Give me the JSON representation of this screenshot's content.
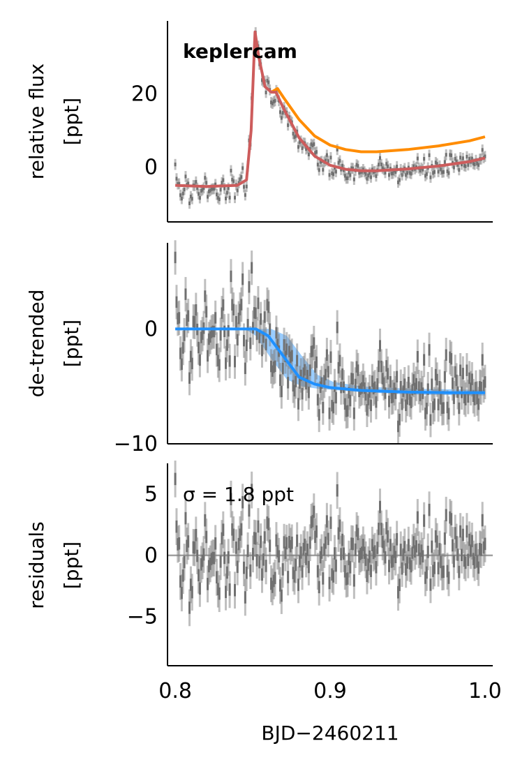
{
  "chart_data": [
    {
      "type": "scatter",
      "panel": "top",
      "title": "",
      "annotation": "keplercam",
      "ylabel_line1": "relative flux",
      "ylabel_line2": "[ppt]",
      "xlim": [
        0.795,
        1.005
      ],
      "ylim": [
        -15,
        40
      ],
      "yticks": [
        0,
        20
      ],
      "ytick_labels": [
        "0",
        "20"
      ],
      "series": [
        {
          "name": "data",
          "color": "#808080",
          "style": "errorbar",
          "x_range": [
            0.8,
            1.0
          ],
          "n_points": 240,
          "sample_points": [
            [
              0.8,
              -9
            ],
            [
              0.81,
              -4
            ],
            [
              0.82,
              -6
            ],
            [
              0.83,
              -4
            ],
            [
              0.84,
              -5
            ],
            [
              0.85,
              28
            ],
            [
              0.86,
              18
            ],
            [
              0.87,
              13
            ],
            [
              0.88,
              5
            ],
            [
              0.89,
              1
            ],
            [
              0.9,
              -1
            ],
            [
              0.92,
              -1
            ],
            [
              0.94,
              -2
            ],
            [
              0.96,
              -1
            ],
            [
              0.98,
              0
            ],
            [
              1.0,
              2
            ]
          ]
        },
        {
          "name": "model",
          "color": "#CD5C5C",
          "style": "line",
          "points": [
            [
              0.8,
              -5.0
            ],
            [
              0.82,
              -5.3
            ],
            [
              0.84,
              -5.0
            ],
            [
              0.846,
              -3.5
            ],
            [
              0.849,
              10
            ],
            [
              0.8515,
              37
            ],
            [
              0.854,
              30
            ],
            [
              0.858,
              22
            ],
            [
              0.862,
              20.5
            ],
            [
              0.865,
              20.5
            ],
            [
              0.87,
              16
            ],
            [
              0.88,
              8
            ],
            [
              0.89,
              3
            ],
            [
              0.9,
              0.5
            ],
            [
              0.91,
              -0.6
            ],
            [
              0.92,
              -1.0
            ],
            [
              0.93,
              -1.0
            ],
            [
              0.95,
              -0.5
            ],
            [
              0.97,
              0.3
            ],
            [
              0.99,
              1.5
            ],
            [
              1.0,
              2.5
            ]
          ]
        },
        {
          "name": "model without flare",
          "color": "#FF8C00",
          "style": "line",
          "points": [
            [
              0.862,
              20.5
            ],
            [
              0.866,
              21.5
            ],
            [
              0.87,
              19
            ],
            [
              0.88,
              13
            ],
            [
              0.89,
              8.5
            ],
            [
              0.9,
              6
            ],
            [
              0.91,
              4.8
            ],
            [
              0.92,
              4.2
            ],
            [
              0.93,
              4.2
            ],
            [
              0.95,
              4.8
            ],
            [
              0.97,
              5.8
            ],
            [
              0.99,
              7.2
            ],
            [
              1.0,
              8.3
            ]
          ]
        }
      ]
    },
    {
      "type": "scatter",
      "panel": "middle",
      "ylabel_line1": "de-trended",
      "ylabel_line2": "[ppt]",
      "xlim": [
        0.795,
        1.005
      ],
      "ylim": [
        -10,
        7.5
      ],
      "yticks": [
        0,
        -10
      ],
      "ytick_labels": [
        "0",
        "−10"
      ],
      "series": [
        {
          "name": "data",
          "color": "#808080",
          "style": "errorbar",
          "x_range": [
            0.8,
            1.0
          ],
          "n_points": 240,
          "sample_points": [
            [
              0.8,
              -1
            ],
            [
              0.82,
              1
            ],
            [
              0.84,
              1
            ],
            [
              0.86,
              -1
            ],
            [
              0.88,
              -3.5
            ],
            [
              0.9,
              -5
            ],
            [
              0.92,
              -5
            ],
            [
              0.94,
              -5.5
            ],
            [
              0.96,
              -5.5
            ],
            [
              0.98,
              -5.5
            ],
            [
              1.0,
              -5.5
            ]
          ]
        },
        {
          "name": "transit model",
          "color": "#1E90FF",
          "style": "line",
          "points": [
            [
              0.8,
              0
            ],
            [
              0.84,
              0
            ],
            [
              0.852,
              0
            ],
            [
              0.86,
              -0.6
            ],
            [
              0.87,
              -2.4
            ],
            [
              0.88,
              -4.2
            ],
            [
              0.89,
              -4.8
            ],
            [
              0.9,
              -5.1
            ],
            [
              0.92,
              -5.35
            ],
            [
              0.95,
              -5.5
            ],
            [
              0.98,
              -5.55
            ],
            [
              1.0,
              -5.55
            ]
          ]
        },
        {
          "name": "model uncertainty",
          "color": "#1E90FF",
          "style": "band",
          "upper": [
            [
              0.8,
              0
            ],
            [
              0.852,
              0
            ],
            [
              0.862,
              0
            ],
            [
              0.872,
              -0.6
            ],
            [
              0.882,
              -2.4
            ],
            [
              0.892,
              -4.0
            ],
            [
              0.902,
              -4.6
            ],
            [
              0.92,
              -5.0
            ],
            [
              0.95,
              -5.2
            ],
            [
              1.0,
              -5.3
            ]
          ],
          "lower": [
            [
              0.8,
              0
            ],
            [
              0.845,
              0
            ],
            [
              0.852,
              -0.6
            ],
            [
              0.862,
              -2.6
            ],
            [
              0.872,
              -4.4
            ],
            [
              0.882,
              -5.0
            ],
            [
              0.892,
              -5.2
            ],
            [
              0.92,
              -5.5
            ],
            [
              0.95,
              -5.7
            ],
            [
              1.0,
              -5.8
            ]
          ]
        }
      ]
    },
    {
      "type": "scatter",
      "panel": "bottom",
      "annotation": "σ = 1.8 ppt",
      "ylabel_line1": "residuals",
      "ylabel_line2": "[ppt]",
      "xlabel": "BJD−2460211",
      "xlim": [
        0.795,
        1.005
      ],
      "ylim": [
        -9,
        7.5
      ],
      "yticks": [
        5,
        0,
        -5
      ],
      "ytick_labels": [
        "5",
        "0",
        "−5"
      ],
      "xticks": [
        0.8,
        0.9,
        1.0
      ],
      "xtick_labels": [
        "0.8",
        "0.9",
        "1.0"
      ],
      "series": [
        {
          "name": "residuals",
          "color": "#808080",
          "style": "errorbar",
          "x_range": [
            0.8,
            1.0
          ],
          "n_points": 240
        },
        {
          "name": "zero line",
          "color": "#A0A0A0",
          "style": "hline",
          "y": 0
        }
      ]
    }
  ]
}
